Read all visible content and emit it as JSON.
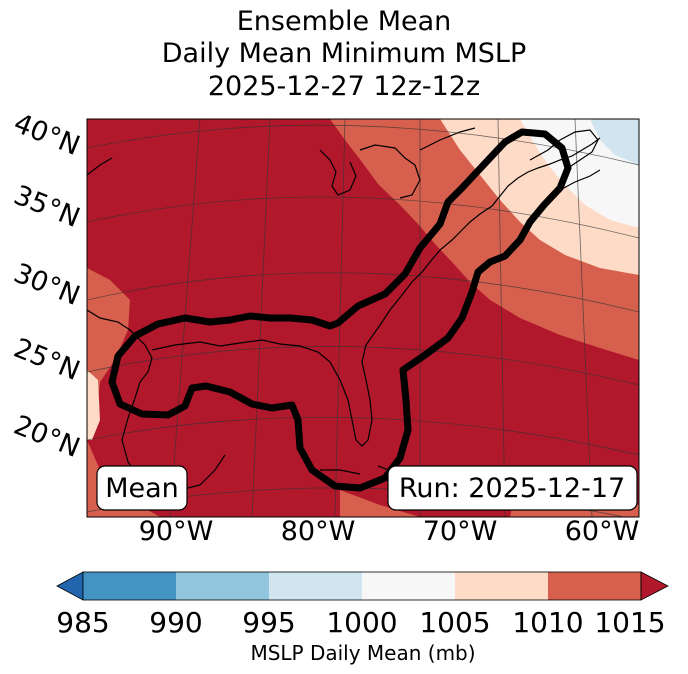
{
  "title": {
    "line1": "Ensemble Mean",
    "line2": "Daily Mean Minimum MSLP",
    "line3": "2025-12-27 12z-12z"
  },
  "map": {
    "lat_labels": [
      "40°N",
      "35°N",
      "30°N",
      "25°N",
      "20°N"
    ],
    "lon_labels": [
      "90°W",
      "80°W",
      "70°W",
      "60°W"
    ],
    "mean_label": "Mean",
    "run_label": "Run: 2025-12-17"
  },
  "colorbar": {
    "ticks": [
      "985",
      "990",
      "995",
      "1000",
      "1005",
      "1010",
      "1015"
    ],
    "label": "MSLP Daily Mean (mb)",
    "colors": {
      "under": "#2166ac",
      "c985_990": "#4393c3",
      "c990_995": "#92c5de",
      "c995_1000": "#d1e5f0",
      "c1000_1005": "#f7f7f7",
      "c1005_1010": "#fddbc7",
      "c1010_1015": "#d6604d",
      "over": "#b2182b"
    }
  }
}
